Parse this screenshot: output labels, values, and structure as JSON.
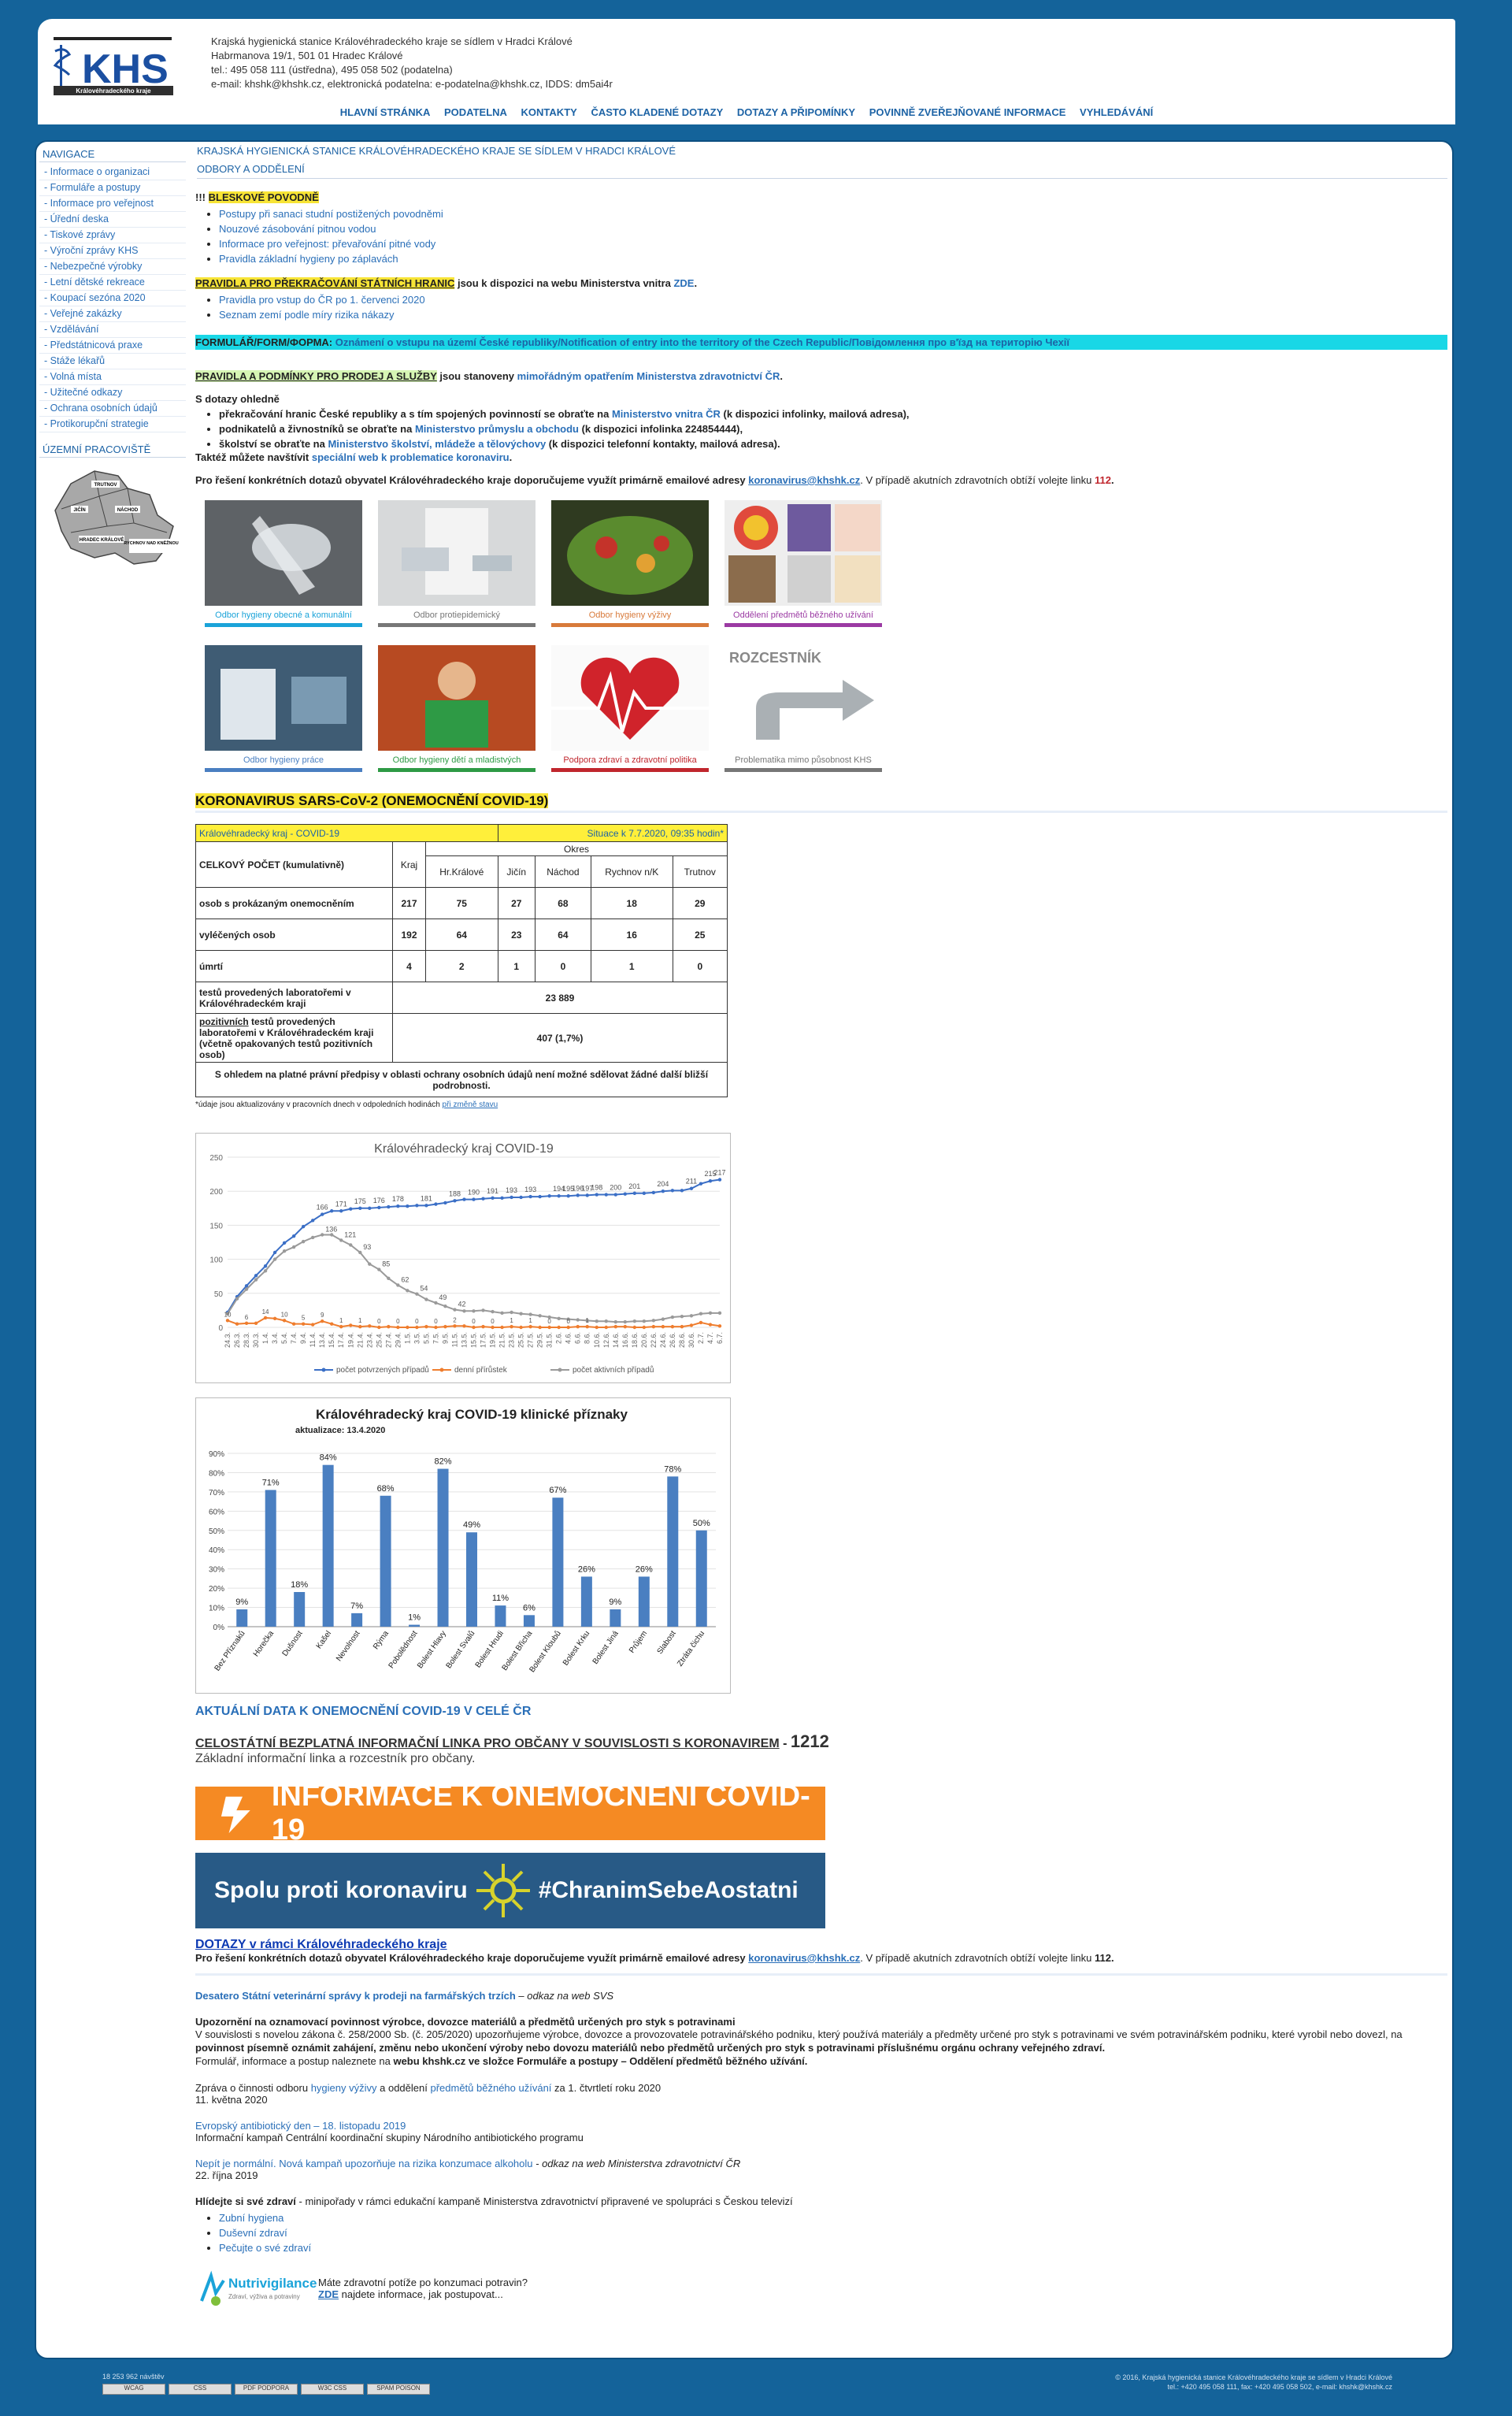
{
  "header": {
    "logo_text": "KHS",
    "logo_sub": "Královéhradeckého kraje",
    "org": "Krajská hygienická stanice Královéhradeckého kraje se sídlem v Hradci Králové",
    "street": "Habrmanova 19/1, 501 01 Hradec Králové",
    "tel": "tel.: 495 058 111 (ústředna), 495 058 502 (podatelna)",
    "email": "e-mail: khshk@khshk.cz, elektronická podatelna: e-podatelna@khshk.cz, IDDS: dm5ai4r"
  },
  "topnav": [
    "HLAVNÍ STRÁNKA",
    "PODATELNA",
    "KONTAKTY",
    "ČASTO KLADENÉ DOTAZY",
    "DOTAZY A PŘIPOMÍNKY",
    "POVINNĚ ZVEŘEJŇOVANÉ INFORMACE",
    "VYHLEDÁVÁNÍ"
  ],
  "sidebar": {
    "heading": "NAVIGACE",
    "items": [
      "- Informace o organizaci",
      "- Formuláře a postupy",
      "- Informace pro veřejnost",
      "- Úřední deska",
      "- Tiskové zprávy",
      "- Výroční zprávy KHS",
      "- Nebezpečné výrobky",
      "- Letní dětské rekreace",
      "- Koupací sezóna 2020",
      "- Veřejné zakázky",
      "- Vzdělávání",
      "- Předstátnicová praxe",
      "- Stáže lékařů",
      "- Volná místa",
      "- Užitečné odkazy",
      "- Ochrana osobních údajů",
      "- Protikorupční strategie"
    ],
    "region_heading": "ÚZEMNÍ PRACOVIŠTĚ",
    "map_labels": [
      "TRUTNOV",
      "JIČÍN",
      "NÁCHOD",
      "HRADEC KRÁLOVÉ",
      "RYCHNOV NAD KNĚŽNOU"
    ]
  },
  "main": {
    "crumb1": "KRAJSKÁ HYGIENICKÁ STANICE KRÁLOVÉHRADECKÉHO KRAJE SE SÍDLEM V HRADCI KRÁLOVÉ",
    "crumb2": "ODBORY A ODDĚLENÍ",
    "flood_prefix": "!!! ",
    "flood_title": "BLESKOVÉ POVODNĚ",
    "flood_links": [
      "Postupy při sanaci studní postižených povodněmi",
      "Nouzové zásobování pitnou vodou",
      "Informace pro veřejnost: převařování pitné vody",
      "Pravidla základní hygieny po záplavách"
    ],
    "borders_title": "PRAVIDLA PRO PŘEKRAČOVÁNÍ STÁTNÍCH HRANIC",
    "borders_text": " jsou k dispozici na webu Ministerstva vnitra ",
    "borders_link": "ZDE",
    "borders_end": ".",
    "borders_links": [
      "Pravidla pro vstup do ČR po 1. červenci 2020",
      "Seznam zemí podle míry rizika nákazy"
    ],
    "form_prefix": "FORMULÁŘ/FORM/ФОРМА: ",
    "form_link": "Oznámení o vstupu na území České republiky/Notification of entry into the territory of the Czech Republic/Повідомлення про в'їзд на територію Чехії",
    "rules_title": "PRAVIDLA A PODMÍNKY PRO PRODEJ A SLUŽBY",
    "rules_text": " jsou stanoveny ",
    "rules_link": "mimořádným opatřením Ministerstva zdravotnictví ČR",
    "rules_end": ".",
    "questions_head": "S dotazy ohledně",
    "questions": [
      {
        "pre": "překračování hranic České republiky a s tím spojených povinností se obraťte na ",
        "link": "Ministerstvo vnitra ČR",
        "post": " (k dispozici infolinky, mailová adresa),"
      },
      {
        "pre": "podnikatelů a živnostníků se obraťte na ",
        "link": "Ministerstvo průmyslu a obchodu",
        "post": " (k dispozici infolinka 224854444),"
      },
      {
        "pre": "školství se obraťte na ",
        "link": "Ministerstvo školství, mládeže a tělovýchovy",
        "post": " (k dispozici telefonní kontakty, mailová adresa)."
      }
    ],
    "visit_pre": "Taktéž můžete navštívit ",
    "visit_link": "speciální web k problematice koronaviru",
    "visit_end": ".",
    "contact_pre": "Pro řešení konkrétních dotazů obyvatel Královéhradeckého kraje doporučujeme využít primárně emailové adresy ",
    "contact_link": "koronavirus@khshk.cz",
    "contact_mid": ". V případě akutních zdravotních obtíží volejte linku ",
    "contact_num": "112",
    "contact_end": ".",
    "tiles": [
      {
        "caption": "Odbor hygieny obecné a komunální",
        "color": "#1aa3d9",
        "cap_color": "#1aa3d9"
      },
      {
        "caption": "Odbor protiepidemický",
        "color": "#777777",
        "cap_color": "#777777"
      },
      {
        "caption": "Odbor hygieny výživy",
        "color": "#d87a3a",
        "cap_color": "#d87a3a"
      },
      {
        "caption": "Oddělení předmětů běžného užívání",
        "color": "#9b3aa3",
        "cap_color": "#9b3aa3"
      },
      {
        "caption": "Odbor hygieny práce",
        "color": "#4a7fc1",
        "cap_color": "#4a7fc1"
      },
      {
        "caption": "Odbor hygieny dětí a mladistvých",
        "color": "#2e9a45",
        "cap_color": "#2e9a45"
      },
      {
        "caption": "Podpora zdraví a zdravotní politika",
        "color": "#c0262d",
        "cap_color": "#c0262d"
      },
      {
        "caption": "Problematika mimo působnost KHS",
        "color": "#777777",
        "cap_color": "#777777"
      }
    ],
    "rozcestnik": "ROZCESTNÍK",
    "sars_title": "KORONAVIRUS SARS-CoV-2 (ONEMOCNĚNÍ COVID-19)",
    "table": {
      "title_left": "Královéhradecký kraj - COVID-19",
      "title_right": "Situace k 7.7.2020, 09:35 hodin*",
      "okres": "Okres",
      "total_label": "CELKOVÝ POČET (kumulativně)",
      "cols": [
        "Kraj",
        "Hr.Králové",
        "Jičín",
        "Náchod",
        "Rychnov n/K",
        "Trutnov"
      ],
      "rows": [
        {
          "label": "osob s prokázaným onemocněním",
          "values": [
            "217",
            "75",
            "27",
            "68",
            "18",
            "29"
          ]
        },
        {
          "label": "vyléčených osob",
          "values": [
            "192",
            "64",
            "23",
            "64",
            "16",
            "25"
          ]
        },
        {
          "label": "úmrtí",
          "values": [
            "4",
            "2",
            "1",
            "0",
            "1",
            "0"
          ]
        }
      ],
      "tests_label": "testů provedených laboratořemi v Královéhradeckém kraji",
      "tests_value": "23 889",
      "pos_prefix": "pozitivních",
      "pos_label": " testů provedených laboratořemi v Královéhradeckém kraji (včetně opakovaných testů pozitivních osob)",
      "pos_value": "407 (1,7%)",
      "privacy": "S ohledem na platné právní předpisy v oblasti ochrany osobních údajů není možné sdělovat žádné další bližší podrobnosti.",
      "note_pre": "*údaje jsou aktualizovány v pracovních dnech v odpoledních hodinách ",
      "note_link": "při změně stavu"
    },
    "covid_link": "AKTUÁLNÍ DATA K ONEMOCNĚNÍ COVID-19 V CELÉ ČR",
    "hotline_title": "CELOSTÁTNÍ BEZPLATNÁ INFORMAČNÍ LINKA PRO OBČANY V SOUVISLOSTI S KORONAVIREM",
    "hotline_dash": " - ",
    "hotline_num": "1212",
    "hotline_sub": "Základní informační linka a rozcestník pro občany.",
    "banner1": "INFORMACE K ONEMOCNĚNÍ COVID-19",
    "banner2_left": "Spolu proti koronaviru",
    "banner2_right": "#ChranimSebeAostatni",
    "dotazy_title": "DOTAZY v rámci Královéhradeckého kraje",
    "vet_link": "Desatero Státní veterinární správy k prodeji na farmářských trzích",
    "vet_text": " – odkaz na web SVS",
    "notify_title": "Upozornění na oznamovací povinnost výrobce, dovozce materiálů a předmětů určených pro styk s potravinami",
    "notify_p1": "V souvislosti s novelou zákona č. 258/2000 Sb. (č. 205/2020) upozorňujeme výrobce, dovozce a provozovatele potravinářského podniku, který používá materiály a předměty určené pro styk s potravinami ve svém potravinářském podniku, které vyrobil nebo dovezl, na ",
    "notify_bold": "povinnost písemně oznámit zahájení, změnu nebo ukončení výroby nebo dovozu materiálů nebo předmětů určených pro styk s potravinami příslušnému orgánu ochrany veřejného zdraví.",
    "notify_p2": "Formulář, informace a postup naleznete na ",
    "notify_bold2": "webu khshk.cz ve složce Formuláře a postupy – Oddělení předmětů běžného užívání.",
    "report_pre": "Zpráva o činnosti odboru ",
    "report_link1": "hygieny výživy",
    "report_mid": " a oddělení ",
    "report_link2": "předmětů běžného užívání",
    "report_end": " za 1. čtvrtletí roku 2020",
    "report_date": "11. května 2020",
    "atb_link": "Evropský antibiotický den – 18. listopadu 2019",
    "atb_text": "Informační kampaň Centrální koordinační skupiny Národního antibiotického programu",
    "alc_link": "Nepít je normální. Nová kampaň upozorňuje na rizika konzumace alkoholu",
    "alc_text": " - odkaz na web Ministerstva zdravotnictví ČR",
    "alc_date": "22. října 2019",
    "health_pre": "Hlídejte si své zdraví",
    "health_text": " - minipořady v rámci edukační kampaně Ministerstva zdravotnictví připravené ve spolupráci s Českou televizí",
    "health_links": [
      "Zubní hygiena",
      "Duševní zdraví",
      "Pečujte o své zdraví"
    ],
    "nutri_name": "Nutrivigilance",
    "nutri_sub": "Zdraví, výživa a potraviny",
    "nutri_q": "Máte zdravotní potíže po konzumaci potravin?",
    "nutri_link": "ZDE",
    "nutri_end": " najdete informace, jak postupovat..."
  },
  "footer": {
    "counter": "18 253 962 návštěv",
    "badges": [
      "WCAG",
      "CSS",
      "PDF PODPORA",
      "W3C CSS",
      "SPAM POISON"
    ],
    "copy1": "© 2016, Krajská hygienická stanice Královéhradeckého kraje se sídlem v Hradci Králové",
    "copy2": "tel.: +420 495 058 111, fax: +420 495 058 502, e-mail: khshk@khshk.cz"
  },
  "chart_data": [
    {
      "type": "line",
      "title": "Královéhradecký kraj COVID-19",
      "x": [
        "24.3.",
        "26.3.",
        "28.3.",
        "30.3.",
        "1.4.",
        "3.4.",
        "5.4.",
        "7.4.",
        "9.4.",
        "11.4.",
        "13.4.",
        "15.4.",
        "17.4.",
        "19.4.",
        "21.4.",
        "23.4.",
        "25.4.",
        "27.4.",
        "29.4.",
        "1.5.",
        "3.5.",
        "5.5.",
        "7.5.",
        "9.5.",
        "11.5.",
        "13.5.",
        "15.5.",
        "17.5.",
        "19.5.",
        "21.5.",
        "23.5.",
        "25.5.",
        "27.5.",
        "29.5.",
        "31.5.",
        "2.6.",
        "4.6.",
        "6.6.",
        "8.6.",
        "10.6.",
        "12.6.",
        "14.6.",
        "16.6.",
        "18.6.",
        "20.6.",
        "22.6.",
        "24.6.",
        "26.6.",
        "28.6.",
        "30.6.",
        "2.7.",
        "4.7.",
        "6.7."
      ],
      "ylim": [
        0,
        250
      ],
      "yticks": [
        0,
        50,
        100,
        150,
        200,
        250
      ],
      "grid": true,
      "legend_position": "bottom",
      "series": [
        {
          "name": "počet potvrzených případů",
          "color": "#3b6fc6",
          "values": [
            22,
            45,
            61,
            76,
            90,
            110,
            124,
            134,
            148,
            157,
            166,
            171,
            171,
            174,
            175,
            175,
            176,
            177,
            178,
            178,
            179,
            179,
            181,
            183,
            186,
            188,
            188,
            189,
            190,
            190,
            191,
            191,
            192,
            192,
            193,
            193,
            193,
            194,
            194,
            195,
            195,
            195,
            196,
            197,
            197,
            198,
            200,
            201,
            201,
            204,
            211,
            215,
            217
          ]
        },
        {
          "name": "denní přírůstek",
          "color": "#ef7d2e",
          "values": [
            10,
            5,
            6,
            6,
            14,
            13,
            10,
            5,
            5,
            4,
            9,
            5,
            1,
            3,
            1,
            2,
            0,
            1,
            0,
            0,
            0,
            1,
            0,
            1,
            2,
            2,
            0,
            1,
            0,
            0,
            1,
            0,
            1,
            0,
            0,
            0,
            0,
            1,
            1,
            0,
            0,
            1,
            1,
            0,
            0,
            1,
            1,
            1,
            1,
            3,
            7,
            4,
            2
          ]
        },
        {
          "name": "počet aktivních případů",
          "color": "#9a9a9a",
          "values": [
            20,
            42,
            56,
            70,
            83,
            100,
            112,
            118,
            126,
            132,
            136,
            136,
            128,
            121,
            110,
            93,
            85,
            72,
            62,
            54,
            49,
            41,
            36,
            31,
            26,
            24,
            24,
            25,
            23,
            21,
            22,
            20,
            19,
            17,
            15,
            13,
            12,
            11,
            10,
            9,
            9,
            8,
            8,
            9,
            9,
            10,
            12,
            15,
            16,
            17,
            20,
            21,
            21
          ]
        }
      ],
      "point_labels": {
        "confirmed": [
          [
            10,
            "166"
          ],
          [
            12,
            "171"
          ],
          [
            14,
            "175"
          ],
          [
            16,
            "176"
          ],
          [
            18,
            "178"
          ],
          [
            21,
            "181"
          ],
          [
            24,
            "188"
          ],
          [
            26,
            "190"
          ],
          [
            28,
            "191"
          ],
          [
            30,
            "193"
          ],
          [
            32,
            "193"
          ],
          [
            35,
            "194"
          ],
          [
            36,
            "195"
          ],
          [
            37,
            "196"
          ],
          [
            38,
            "197"
          ],
          [
            39,
            "198"
          ],
          [
            41,
            "200"
          ],
          [
            43,
            "201"
          ],
          [
            46,
            "204"
          ],
          [
            49,
            "211"
          ],
          [
            51,
            "215"
          ],
          [
            52,
            "217"
          ]
        ],
        "active": [
          [
            10,
            "136"
          ],
          [
            12,
            "121"
          ],
          [
            14,
            "93"
          ],
          [
            16,
            "85"
          ],
          [
            18,
            "62"
          ],
          [
            20,
            "54"
          ],
          [
            22,
            "49"
          ],
          [
            24,
            "42"
          ]
        ]
      }
    },
    {
      "type": "bar",
      "title": "Královéhradecký kraj COVID-19 klinické příznaky",
      "subtitle": "aktualizace: 13.4.2020",
      "categories": [
        "Bez Příznaků",
        "Horečka",
        "Dušnost",
        "Kašel",
        "Nevolnost",
        "Rýma",
        "Pobolědnost",
        "Bolest Hlavy",
        "Bolest Svalů",
        "Bolest Hrudi",
        "Bolest Břicha",
        "Bolest Kloubů",
        "Bolest Krku",
        "Bolest Jiná",
        "Průjem",
        "Slabost",
        "Ztráta čichu"
      ],
      "values": [
        9,
        71,
        18,
        84,
        7,
        68,
        1,
        82,
        49,
        11,
        6,
        67,
        26,
        9,
        26,
        78,
        50
      ],
      "ylim": [
        0,
        90
      ],
      "color": "#4a7fc1"
    }
  ]
}
